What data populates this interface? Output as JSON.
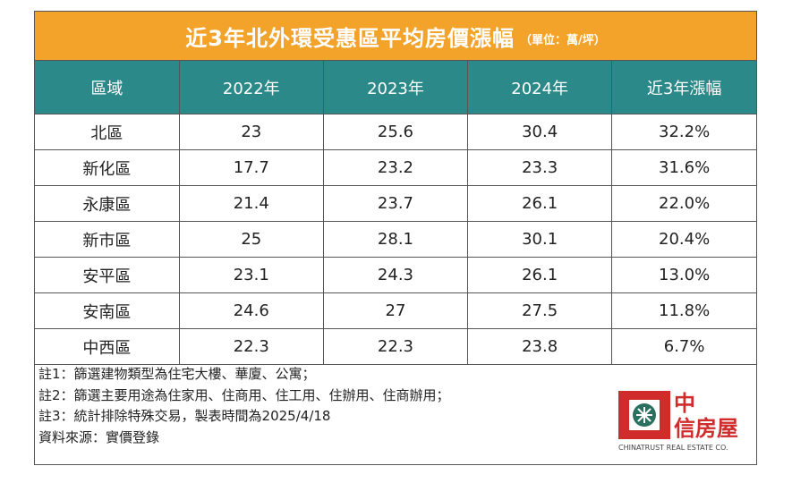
{
  "header": {
    "title": "近3年北外環受惠區平均房價漲幅",
    "subtitle": "（單位：萬/坪）"
  },
  "table": {
    "columns": [
      "區域",
      "2022年",
      "2023年",
      "2024年",
      "近3年漲幅"
    ],
    "rows": [
      [
        "北區",
        "23",
        "25.6",
        "30.4",
        "32.2%"
      ],
      [
        "新化區",
        "17.7",
        "23.2",
        "23.3",
        "31.6%"
      ],
      [
        "永康區",
        "21.4",
        "23.7",
        "26.1",
        "22.0%"
      ],
      [
        "新市區",
        "25",
        "28.1",
        "30.1",
        "20.4%"
      ],
      [
        "安平區",
        "23.1",
        "24.3",
        "26.1",
        "13.0%"
      ],
      [
        "安南區",
        "24.6",
        "27",
        "27.5",
        "11.8%"
      ],
      [
        "中西區",
        "22.3",
        "22.3",
        "23.8",
        "6.7%"
      ]
    ]
  },
  "notes": [
    "註1：篩選建物類型為住宅大樓、華廈、公寓；",
    "註2：篩選主要用途為住家用、住商用、住工用、住辦用、住商辦用；",
    "註3：統計排除特殊交易，製表時間為2025/4/18",
    "資料來源：實價登錄"
  ],
  "logo": {
    "line1": "中",
    "line2": "信房屋",
    "english": "CHINATRUST REAL ESTATE CO."
  }
}
